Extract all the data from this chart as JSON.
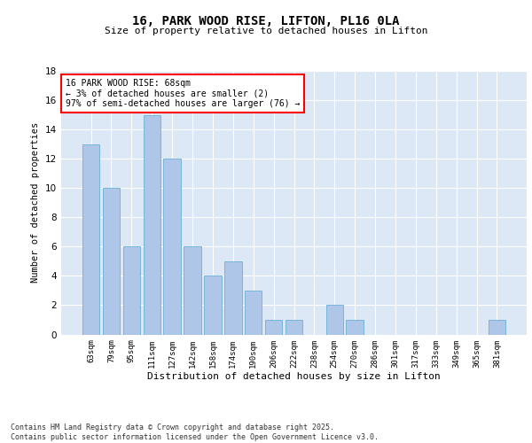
{
  "title_line1": "16, PARK WOOD RISE, LIFTON, PL16 0LA",
  "title_line2": "Size of property relative to detached houses in Lifton",
  "xlabel": "Distribution of detached houses by size in Lifton",
  "ylabel": "Number of detached properties",
  "categories": [
    "63sqm",
    "79sqm",
    "95sqm",
    "111sqm",
    "127sqm",
    "142sqm",
    "158sqm",
    "174sqm",
    "190sqm",
    "206sqm",
    "222sqm",
    "238sqm",
    "254sqm",
    "270sqm",
    "286sqm",
    "301sqm",
    "317sqm",
    "333sqm",
    "349sqm",
    "365sqm",
    "381sqm"
  ],
  "values": [
    13,
    10,
    6,
    15,
    12,
    6,
    4,
    5,
    3,
    1,
    1,
    0,
    2,
    1,
    0,
    0,
    0,
    0,
    0,
    0,
    1
  ],
  "bar_color": "#aec6e8",
  "bar_edgecolor": "#6baed6",
  "annotation_text": "16 PARK WOOD RISE: 68sqm\n← 3% of detached houses are smaller (2)\n97% of semi-detached houses are larger (76) →",
  "annotation_box_edgecolor": "red",
  "annotation_box_facecolor": "white",
  "ylim": [
    0,
    18
  ],
  "yticks": [
    0,
    2,
    4,
    6,
    8,
    10,
    12,
    14,
    16,
    18
  ],
  "background_color": "#dce8f5",
  "grid_color": "white",
  "footer_text": "Contains HM Land Registry data © Crown copyright and database right 2025.\nContains public sector information licensed under the Open Government Licence v3.0."
}
